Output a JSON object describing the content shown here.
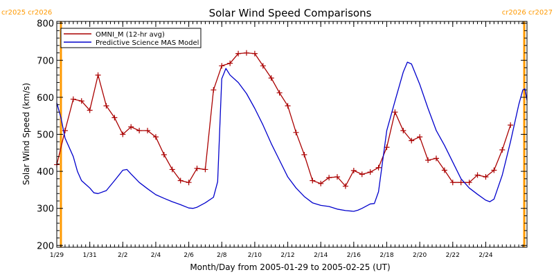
{
  "chart_data": {
    "type": "line",
    "title": "Solar Wind Speed Comparisons",
    "xlabel": "Month/Day from 2005-01-29 to 2005-02-25 (UT)",
    "ylabel": "Solar Wind Speed (km/s)",
    "ylim": [
      195,
      805
    ],
    "xlim": [
      "2005-01-29T00:00",
      "2005-02-26T12:00"
    ],
    "y_ticks": [
      200,
      300,
      400,
      500,
      600,
      700,
      800
    ],
    "x_ticks": [
      {
        "date": "2005-01-29",
        "label": "1/29"
      },
      {
        "date": "2005-01-31",
        "label": "1/31"
      },
      {
        "date": "2005-02-02",
        "label": "2/2"
      },
      {
        "date": "2005-02-04",
        "label": "2/4"
      },
      {
        "date": "2005-02-06",
        "label": "2/6"
      },
      {
        "date": "2005-02-08",
        "label": "2/8"
      },
      {
        "date": "2005-02-10",
        "label": "2/10"
      },
      {
        "date": "2005-02-12",
        "label": "2/12"
      },
      {
        "date": "2005-02-14",
        "label": "2/14"
      },
      {
        "date": "2005-02-16",
        "label": "2/16"
      },
      {
        "date": "2005-02-18",
        "label": "2/18"
      },
      {
        "date": "2005-02-20",
        "label": "2/20"
      },
      {
        "date": "2005-02-22",
        "label": "2/22"
      },
      {
        "date": "2005-02-24",
        "label": "2/24"
      }
    ],
    "rotation_markers": [
      {
        "date": "2005-01-29T06:00",
        "labels": [
          "cr2025",
          "cr2026"
        ],
        "color": "#ff9900"
      },
      {
        "date": "2005-02-26T08:00",
        "labels": [
          "cr2026",
          "cr2027"
        ],
        "color": "#ff9900"
      }
    ],
    "legend_position": "top-left",
    "series": [
      {
        "name": "OMNI_M (12-hr avg)",
        "color": "#aa0000",
        "marker": "plus",
        "points": [
          [
            "2005-01-29T00:00",
            418
          ],
          [
            "2005-01-29T12:00",
            510
          ],
          [
            "2005-01-30T00:00",
            595
          ],
          [
            "2005-01-30T12:00",
            590
          ],
          [
            "2005-01-31T00:00",
            565
          ],
          [
            "2005-01-31T12:00",
            660
          ],
          [
            "2005-02-01T00:00",
            577
          ],
          [
            "2005-02-01T12:00",
            545
          ],
          [
            "2005-02-02T00:00",
            500
          ],
          [
            "2005-02-02T12:00",
            520
          ],
          [
            "2005-02-03T00:00",
            510
          ],
          [
            "2005-02-03T12:00",
            510
          ],
          [
            "2005-02-04T00:00",
            493
          ],
          [
            "2005-02-04T12:00",
            445
          ],
          [
            "2005-02-05T00:00",
            405
          ],
          [
            "2005-02-05T12:00",
            375
          ],
          [
            "2005-02-06T00:00",
            370
          ],
          [
            "2005-02-06T12:00",
            408
          ],
          [
            "2005-02-07T00:00",
            405
          ],
          [
            "2005-02-07T12:00",
            620
          ],
          [
            "2005-02-08T00:00",
            685
          ],
          [
            "2005-02-08T12:00",
            692
          ],
          [
            "2005-02-09T00:00",
            718
          ],
          [
            "2005-02-09T12:00",
            720
          ],
          [
            "2005-02-10T00:00",
            718
          ],
          [
            "2005-02-10T12:00",
            685
          ],
          [
            "2005-02-11T00:00",
            652
          ],
          [
            "2005-02-11T12:00",
            612
          ],
          [
            "2005-02-12T00:00",
            577
          ],
          [
            "2005-02-12T12:00",
            505
          ],
          [
            "2005-02-13T00:00",
            445
          ],
          [
            "2005-02-13T12:00",
            375
          ],
          [
            "2005-02-14T00:00",
            367
          ],
          [
            "2005-02-14T12:00",
            383
          ],
          [
            "2005-02-15T00:00",
            385
          ],
          [
            "2005-02-15T12:00",
            360
          ],
          [
            "2005-02-16T00:00",
            402
          ],
          [
            "2005-02-16T12:00",
            392
          ],
          [
            "2005-02-17T00:00",
            398
          ],
          [
            "2005-02-17T12:00",
            410
          ],
          [
            "2005-02-18T00:00",
            465
          ],
          [
            "2005-02-18T12:00",
            560
          ],
          [
            "2005-02-19T00:00",
            510
          ],
          [
            "2005-02-19T12:00",
            483
          ],
          [
            "2005-02-20T00:00",
            493
          ],
          [
            "2005-02-20T12:00",
            430
          ],
          [
            "2005-02-21T00:00",
            435
          ],
          [
            "2005-02-21T12:00",
            403
          ],
          [
            "2005-02-22T00:00",
            370
          ],
          [
            "2005-02-22T12:00",
            370
          ],
          [
            "2005-02-23T00:00",
            370
          ],
          [
            "2005-02-23T12:00",
            390
          ],
          [
            "2005-02-24T00:00",
            385
          ],
          [
            "2005-02-24T12:00",
            403
          ],
          [
            "2005-02-25T00:00",
            458
          ],
          [
            "2005-02-25T12:00",
            525
          ]
        ]
      },
      {
        "name": "Predictive Science MAS Model",
        "color": "#0000cc",
        "marker": "none",
        "points": [
          [
            "2005-01-29T00:00",
            585
          ],
          [
            "2005-01-29T06:00",
            545
          ],
          [
            "2005-01-29T12:00",
            490
          ],
          [
            "2005-01-30T00:00",
            440
          ],
          [
            "2005-01-30T06:00",
            400
          ],
          [
            "2005-01-30T12:00",
            375
          ],
          [
            "2005-01-31T00:00",
            355
          ],
          [
            "2005-01-31T06:00",
            342
          ],
          [
            "2005-01-31T12:00",
            340
          ],
          [
            "2005-02-01T00:00",
            348
          ],
          [
            "2005-02-01T12:00",
            375
          ],
          [
            "2005-02-02T00:00",
            403
          ],
          [
            "2005-02-02T06:00",
            405
          ],
          [
            "2005-02-02T12:00",
            393
          ],
          [
            "2005-02-03T00:00",
            370
          ],
          [
            "2005-02-03T12:00",
            353
          ],
          [
            "2005-02-04T00:00",
            337
          ],
          [
            "2005-02-04T12:00",
            327
          ],
          [
            "2005-02-05T00:00",
            318
          ],
          [
            "2005-02-05T12:00",
            310
          ],
          [
            "2005-02-06T00:00",
            301
          ],
          [
            "2005-02-06T06:00",
            300
          ],
          [
            "2005-02-06T12:00",
            303
          ],
          [
            "2005-02-07T00:00",
            315
          ],
          [
            "2005-02-07T12:00",
            330
          ],
          [
            "2005-02-07T18:00",
            372
          ],
          [
            "2005-02-08T00:00",
            650
          ],
          [
            "2005-02-08T06:00",
            678
          ],
          [
            "2005-02-08T12:00",
            660
          ],
          [
            "2005-02-09T00:00",
            640
          ],
          [
            "2005-02-09T12:00",
            610
          ],
          [
            "2005-02-10T00:00",
            570
          ],
          [
            "2005-02-10T12:00",
            525
          ],
          [
            "2005-02-11T00:00",
            475
          ],
          [
            "2005-02-11T12:00",
            430
          ],
          [
            "2005-02-12T00:00",
            385
          ],
          [
            "2005-02-12T12:00",
            355
          ],
          [
            "2005-02-13T00:00",
            332
          ],
          [
            "2005-02-13T12:00",
            315
          ],
          [
            "2005-02-14T00:00",
            308
          ],
          [
            "2005-02-14T12:00",
            305
          ],
          [
            "2005-02-15T00:00",
            298
          ],
          [
            "2005-02-15T12:00",
            294
          ],
          [
            "2005-02-16T00:00",
            292
          ],
          [
            "2005-02-16T06:00",
            295
          ],
          [
            "2005-02-16T12:00",
            300
          ],
          [
            "2005-02-17T00:00",
            312
          ],
          [
            "2005-02-17T06:00",
            313
          ],
          [
            "2005-02-17T12:00",
            345
          ],
          [
            "2005-02-18T00:00",
            510
          ],
          [
            "2005-02-18T12:00",
            590
          ],
          [
            "2005-02-19T00:00",
            668
          ],
          [
            "2005-02-19T06:00",
            695
          ],
          [
            "2005-02-19T12:00",
            690
          ],
          [
            "2005-02-20T00:00",
            635
          ],
          [
            "2005-02-20T12:00",
            570
          ],
          [
            "2005-02-21T00:00",
            510
          ],
          [
            "2005-02-21T12:00",
            470
          ],
          [
            "2005-02-22T00:00",
            425
          ],
          [
            "2005-02-22T12:00",
            380
          ],
          [
            "2005-02-23T00:00",
            355
          ],
          [
            "2005-02-23T12:00",
            338
          ],
          [
            "2005-02-24T00:00",
            322
          ],
          [
            "2005-02-24T06:00",
            318
          ],
          [
            "2005-02-24T12:00",
            325
          ],
          [
            "2005-02-25T00:00",
            390
          ],
          [
            "2005-02-25T12:00",
            480
          ],
          [
            "2005-02-26T00:00",
            580
          ],
          [
            "2005-02-26T06:00",
            620
          ],
          [
            "2005-02-26T09:00",
            623
          ],
          [
            "2005-02-26T12:00",
            592
          ]
        ]
      }
    ]
  }
}
